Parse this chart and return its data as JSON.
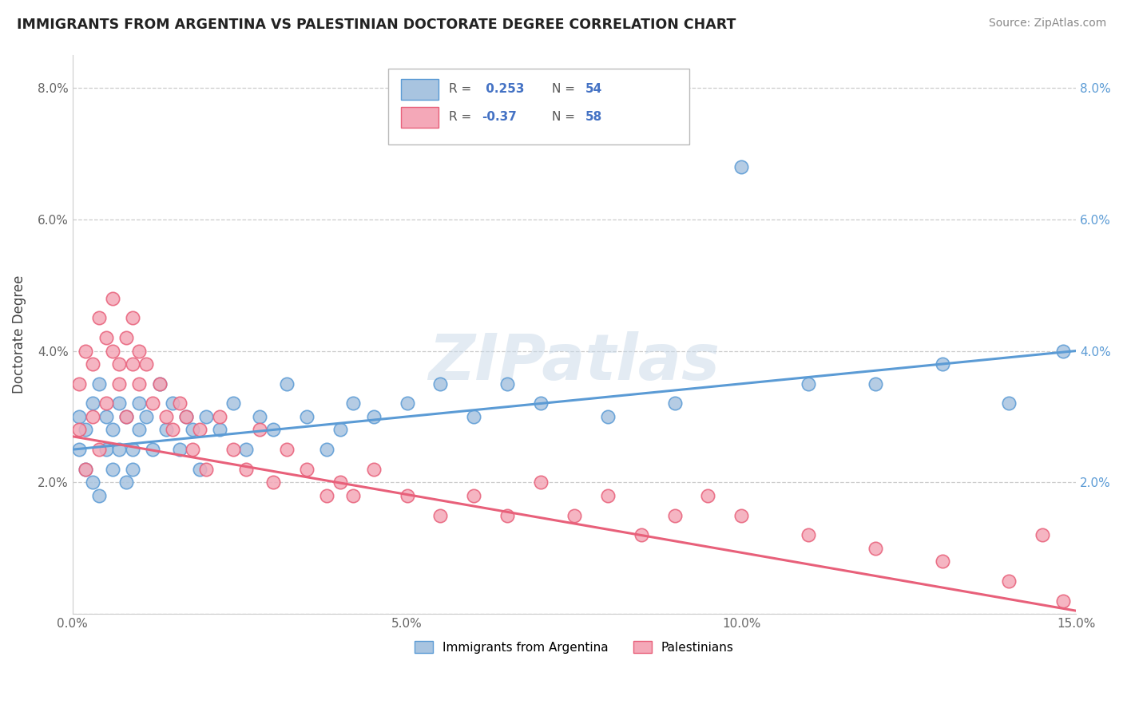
{
  "title": "IMMIGRANTS FROM ARGENTINA VS PALESTINIAN DOCTORATE DEGREE CORRELATION CHART",
  "source": "Source: ZipAtlas.com",
  "ylabel": "Doctorate Degree",
  "xlim": [
    0.0,
    0.15
  ],
  "ylim": [
    0.0,
    0.085
  ],
  "xtick_vals": [
    0.0,
    0.05,
    0.1,
    0.15
  ],
  "xtick_labels": [
    "0.0%",
    "5.0%",
    "10.0%",
    "15.0%"
  ],
  "ytick_vals": [
    0.0,
    0.02,
    0.04,
    0.06,
    0.08
  ],
  "ytick_labels": [
    "",
    "2.0%",
    "4.0%",
    "6.0%",
    "8.0%"
  ],
  "legend_label1": "Immigrants from Argentina",
  "legend_label2": "Palestinians",
  "R1": 0.253,
  "N1": 54,
  "R2": -0.37,
  "N2": 58,
  "color1": "#a8c4e0",
  "color2": "#f4a8b8",
  "line_color1": "#5b9bd5",
  "line_color2": "#e8607a",
  "watermark": "ZIPatlas",
  "argentina_x": [
    0.001,
    0.001,
    0.002,
    0.002,
    0.003,
    0.003,
    0.004,
    0.004,
    0.005,
    0.005,
    0.006,
    0.006,
    0.007,
    0.007,
    0.008,
    0.008,
    0.009,
    0.009,
    0.01,
    0.01,
    0.011,
    0.012,
    0.013,
    0.014,
    0.015,
    0.016,
    0.017,
    0.018,
    0.019,
    0.02,
    0.022,
    0.024,
    0.026,
    0.028,
    0.03,
    0.032,
    0.035,
    0.038,
    0.04,
    0.042,
    0.045,
    0.05,
    0.055,
    0.06,
    0.065,
    0.07,
    0.08,
    0.09,
    0.1,
    0.11,
    0.12,
    0.13,
    0.14,
    0.148
  ],
  "argentina_y": [
    0.025,
    0.03,
    0.022,
    0.028,
    0.032,
    0.02,
    0.035,
    0.018,
    0.025,
    0.03,
    0.028,
    0.022,
    0.032,
    0.025,
    0.02,
    0.03,
    0.025,
    0.022,
    0.028,
    0.032,
    0.03,
    0.025,
    0.035,
    0.028,
    0.032,
    0.025,
    0.03,
    0.028,
    0.022,
    0.03,
    0.028,
    0.032,
    0.025,
    0.03,
    0.028,
    0.035,
    0.03,
    0.025,
    0.028,
    0.032,
    0.03,
    0.032,
    0.035,
    0.03,
    0.035,
    0.032,
    0.03,
    0.032,
    0.068,
    0.035,
    0.035,
    0.038,
    0.032,
    0.04
  ],
  "palestine_x": [
    0.001,
    0.001,
    0.002,
    0.002,
    0.003,
    0.003,
    0.004,
    0.004,
    0.005,
    0.005,
    0.006,
    0.006,
    0.007,
    0.007,
    0.008,
    0.008,
    0.009,
    0.009,
    0.01,
    0.01,
    0.011,
    0.012,
    0.013,
    0.014,
    0.015,
    0.016,
    0.017,
    0.018,
    0.019,
    0.02,
    0.022,
    0.024,
    0.026,
    0.028,
    0.03,
    0.032,
    0.035,
    0.038,
    0.04,
    0.042,
    0.045,
    0.05,
    0.055,
    0.06,
    0.065,
    0.07,
    0.075,
    0.08,
    0.085,
    0.09,
    0.095,
    0.1,
    0.11,
    0.12,
    0.13,
    0.14,
    0.145,
    0.148
  ],
  "palestine_y": [
    0.035,
    0.028,
    0.04,
    0.022,
    0.038,
    0.03,
    0.045,
    0.025,
    0.042,
    0.032,
    0.04,
    0.048,
    0.038,
    0.035,
    0.042,
    0.03,
    0.045,
    0.038,
    0.035,
    0.04,
    0.038,
    0.032,
    0.035,
    0.03,
    0.028,
    0.032,
    0.03,
    0.025,
    0.028,
    0.022,
    0.03,
    0.025,
    0.022,
    0.028,
    0.02,
    0.025,
    0.022,
    0.018,
    0.02,
    0.018,
    0.022,
    0.018,
    0.015,
    0.018,
    0.015,
    0.02,
    0.015,
    0.018,
    0.012,
    0.015,
    0.018,
    0.015,
    0.012,
    0.01,
    0.008,
    0.005,
    0.012,
    0.002
  ]
}
